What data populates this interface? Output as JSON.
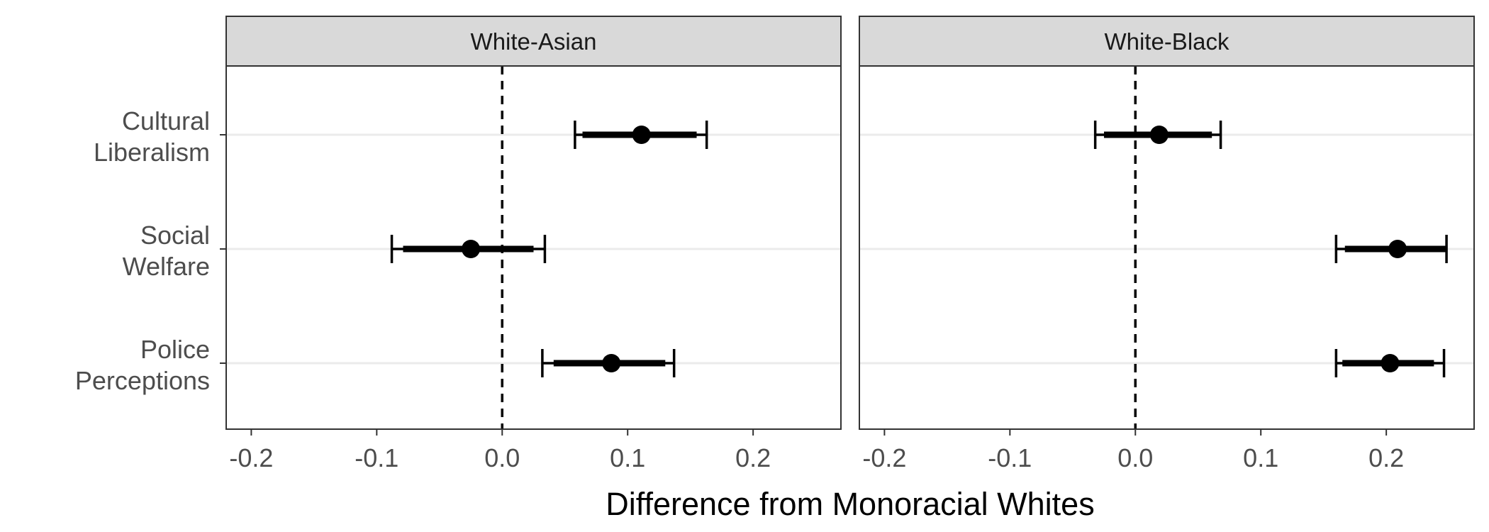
{
  "chart_data": {
    "type": "scatter",
    "subtype": "coefficient-plot-with-error-bars",
    "xlabel": "Difference from Monoracial Whites",
    "xlim": [
      -0.22,
      0.27
    ],
    "x_ticks": [
      {
        "value": -0.2,
        "label": "-0.2"
      },
      {
        "value": -0.1,
        "label": "-0.1"
      },
      {
        "value": 0.0,
        "label": "0.0"
      },
      {
        "value": 0.1,
        "label": "0.1"
      },
      {
        "value": 0.2,
        "label": "0.2"
      }
    ],
    "reference_line": 0,
    "categories": [
      [
        "Cultural",
        "Liberalism"
      ],
      [
        "Social",
        "Welfare"
      ],
      [
        "Police",
        "Perceptions"
      ]
    ],
    "grid": "horizontal major only",
    "panels": [
      {
        "title": "White-Asian",
        "estimates": [
          0.111,
          -0.025,
          0.087
        ],
        "ci_inner": [
          [
            0.064,
            0.155
          ],
          [
            -0.079,
            0.025
          ],
          [
            0.041,
            0.13
          ]
        ],
        "ci_outer": [
          [
            0.058,
            0.163
          ],
          [
            -0.088,
            0.034
          ],
          [
            0.032,
            0.137
          ]
        ]
      },
      {
        "title": "White-Black",
        "estimates": [
          0.019,
          0.209,
          0.203
        ],
        "ci_inner": [
          [
            -0.025,
            0.061
          ],
          [
            0.167,
            0.248
          ],
          [
            0.165,
            0.238
          ]
        ],
        "ci_outer": [
          [
            -0.032,
            0.068
          ],
          [
            0.16,
            0.248
          ],
          [
            0.16,
            0.246
          ]
        ]
      }
    ]
  }
}
